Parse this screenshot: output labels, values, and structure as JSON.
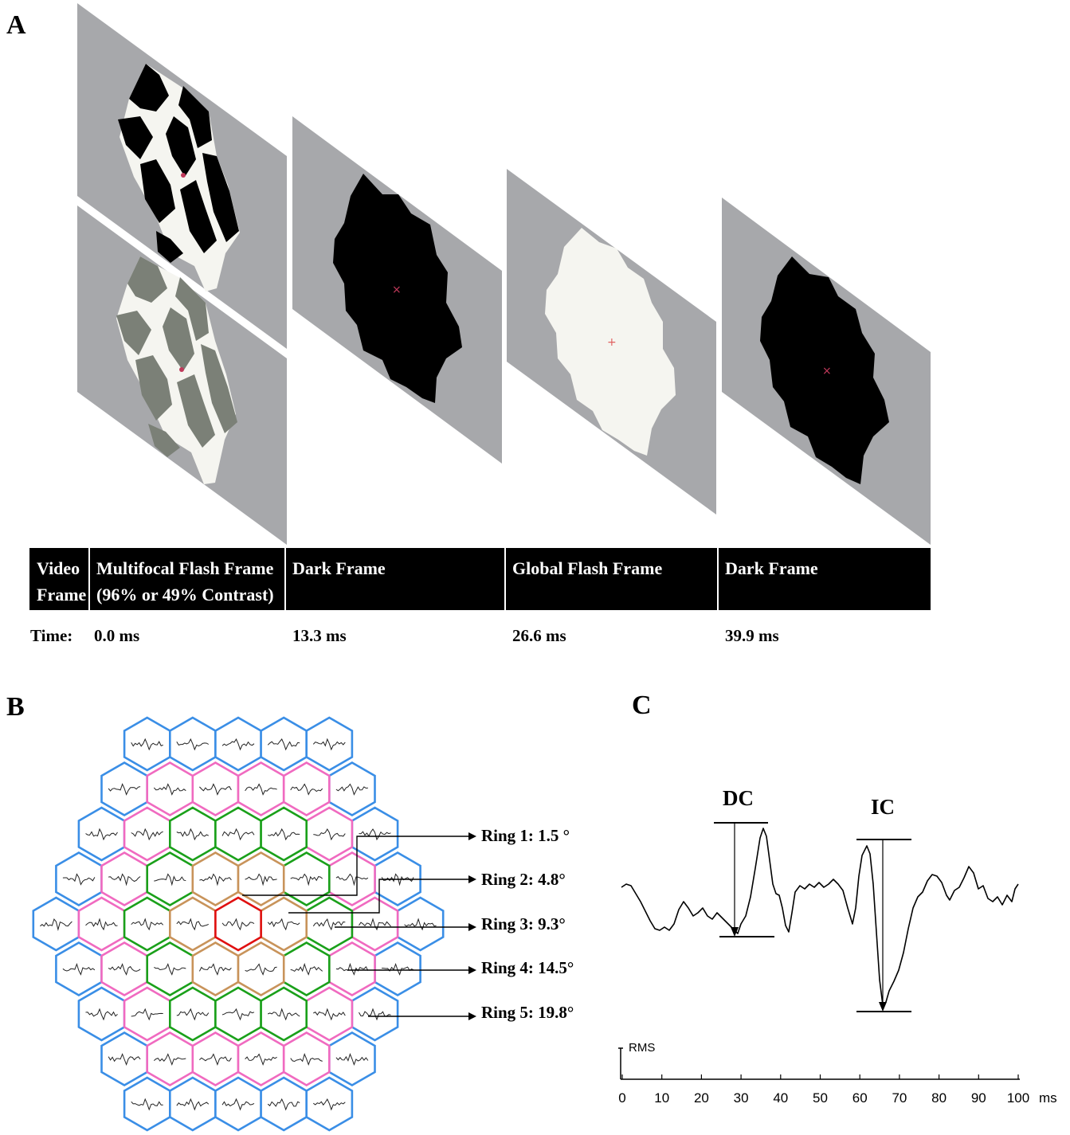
{
  "panels": {
    "a": {
      "letter": "A"
    },
    "b": {
      "letter": "B"
    },
    "c": {
      "letter": "C"
    }
  },
  "panel_a": {
    "header": {
      "col0": [
        "Video",
        "Frame"
      ],
      "col1": [
        "Multifocal Flash Frame",
        "(96% or 49% Contrast)"
      ],
      "col2": "Dark Frame",
      "col3": "Global Flash Frame",
      "col4": "Dark Frame"
    },
    "time": {
      "label": "Time:",
      "values": [
        "0.0 ms",
        "13.3 ms",
        "26.6 ms",
        "39.9 ms"
      ]
    },
    "colors": {
      "plane": "#a7a8ab",
      "dark": "#000000",
      "flash": "#f5f5f0",
      "low_contrast": "#7b8077",
      "fixation": "#c0395a"
    }
  },
  "panel_b": {
    "rings": [
      {
        "label": "Ring 1: 1.5 °",
        "color": "#e01010"
      },
      {
        "label": "Ring 2: 4.8°",
        "color": "#c8935a"
      },
      {
        "label": "Ring 3: 9.3°",
        "color": "#1aa01a"
      },
      {
        "label": "Ring 4: 14.5°",
        "color": "#f06ac0"
      },
      {
        "label": "Ring 5: 19.8°",
        "color": "#3a8ee6"
      }
    ]
  },
  "panel_c": {
    "labels": {
      "dc": "DC",
      "ic": "IC",
      "rms": "RMS",
      "unit": "ms"
    },
    "ticks": [
      "0",
      "10",
      "20",
      "30",
      "40",
      "50",
      "60",
      "70",
      "80",
      "90",
      "100"
    ]
  }
}
